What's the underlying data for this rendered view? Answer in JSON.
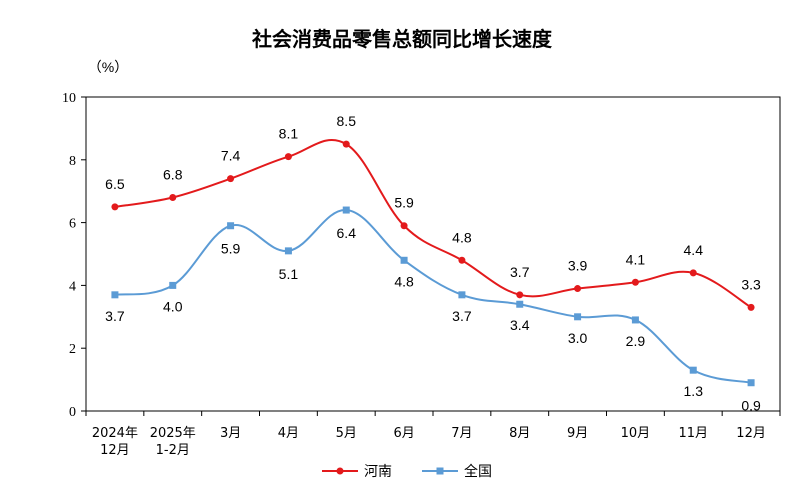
{
  "chart_data": {
    "type": "line",
    "title": "社会消费品零售总额同比增长速度",
    "unit": "（%）",
    "categories": [
      [
        "2024年",
        "12月"
      ],
      [
        "2025年",
        "1-2月"
      ],
      [
        "3月"
      ],
      [
        "4月"
      ],
      [
        "5月"
      ],
      [
        "6月"
      ],
      [
        "7月"
      ],
      [
        "8月"
      ],
      [
        "9月"
      ],
      [
        "10月"
      ],
      [
        "11月"
      ],
      [
        "12月"
      ]
    ],
    "ylim": [
      0,
      10
    ],
    "yticks": [
      "0",
      "2",
      "4",
      "6",
      "8",
      "10"
    ],
    "series": [
      {
        "name": "河南",
        "color": "#e31a1c",
        "marker": "circle",
        "values": [
          6.5,
          6.8,
          7.4,
          8.1,
          8.5,
          5.9,
          4.8,
          3.7,
          3.9,
          4.1,
          4.4,
          3.3
        ],
        "labels": [
          "6.5",
          "6.8",
          "7.4",
          "8.1",
          "8.5",
          "5.9",
          "4.8",
          "3.7",
          "3.9",
          "4.1",
          "4.4",
          "3.3"
        ]
      },
      {
        "name": "全国",
        "color": "#5b9bd5",
        "marker": "square",
        "values": [
          3.7,
          4.0,
          5.9,
          5.1,
          6.4,
          4.8,
          3.7,
          3.4,
          3.0,
          2.9,
          1.3,
          0.9
        ],
        "labels": [
          "3.7",
          "4.0",
          "5.9",
          "5.1",
          "6.4",
          "4.8",
          "3.7",
          "3.4",
          "3.0",
          "2.9",
          "1.3",
          "0.9"
        ]
      }
    ],
    "legend_position": "bottom",
    "grid": false
  }
}
